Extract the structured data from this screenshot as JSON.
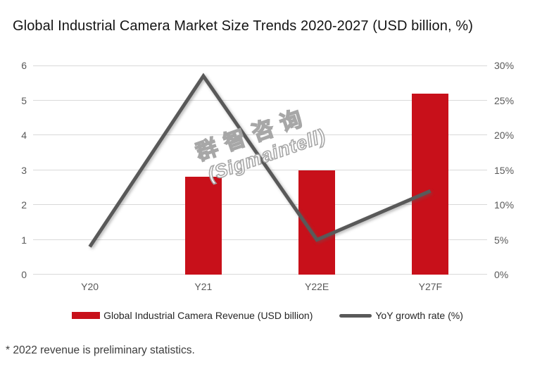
{
  "title": "Global Industrial Camera Market Size Trends 2020-2027 (USD billion, %)",
  "watermark": {
    "line1": "群智咨询",
    "line2": "(Sigmaintell)"
  },
  "footnote": "* 2022 revenue is preliminary statistics.",
  "legend": [
    {
      "label": "Global Industrial Camera Revenue (USD billion)",
      "swatch": "bar",
      "color": "#C8101A"
    },
    {
      "label": "YoY growth rate (%)",
      "swatch": "line",
      "color": "#595959"
    }
  ],
  "colors": {
    "bar": "#C8101A",
    "line": "#595959",
    "gridline": "#D9D9D9",
    "axis_text": "#595959"
  },
  "chart_data": {
    "type": "bar",
    "subtype": "bar+line dual-axis combo",
    "title": "Global Industrial Camera Market Size Trends 2020-2027 (USD billion, %)",
    "categories": [
      "Y20",
      "Y21",
      "Y22E",
      "Y27F"
    ],
    "series": [
      {
        "name": "Global Industrial Camera Revenue (USD billion)",
        "type": "bar",
        "axis": "left",
        "color": "#C8101A",
        "values": [
          null,
          2.8,
          3.0,
          5.2
        ]
      },
      {
        "name": "YoY growth rate (%)",
        "type": "line",
        "axis": "right",
        "color": "#595959",
        "values": [
          4.0,
          28.5,
          5.0,
          12.0
        ]
      }
    ],
    "left_axis": {
      "min": 0,
      "max": 6,
      "ticks": [
        0,
        1,
        2,
        3,
        4,
        5,
        6
      ]
    },
    "right_axis": {
      "min": 0,
      "max": 30,
      "ticks": [
        "0%",
        "5%",
        "10%",
        "15%",
        "20%",
        "25%",
        "30%"
      ]
    },
    "grid": true,
    "legend_position": "bottom"
  }
}
